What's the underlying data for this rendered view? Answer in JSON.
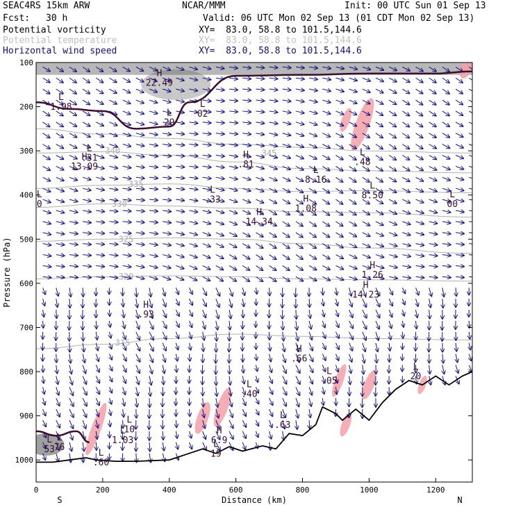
{
  "header": {
    "model": "SEAC4RS 15km ARW",
    "org": "NCAR/MMM",
    "init": "Init: 00 UTC Sun 01 Sep 13",
    "fcst_label": "Fcst:",
    "fcst_value": "30 h",
    "valid": "Valid: 06 UTC Mon 02 Sep 13 (01 CDT Mon 02 Sep 13)"
  },
  "fields": [
    {
      "name": "Potential vorticity",
      "xy": "XY=  83.0, 58.8 to 101.5,144.6",
      "color": "#000000"
    },
    {
      "name": "Potential temperature",
      "xy": "XY=  83.0, 58.8 to 101.5,144.6",
      "color": "#c0c0c0"
    },
    {
      "name": "Horizontal wind speed",
      "xy": "XY=  83.0, 58.8 to 101.5,144.6",
      "color": "#101070"
    }
  ],
  "chart_data": {
    "type": "cross-section",
    "xlabel": "Distance (km)",
    "ylabel": "Pressure (hPa)",
    "xlim": [
      0,
      1310
    ],
    "ylim": [
      1050,
      100
    ],
    "xticks": [
      0,
      200,
      400,
      600,
      800,
      1000,
      1200
    ],
    "yticks": [
      100,
      200,
      300,
      400,
      500,
      600,
      700,
      800,
      900,
      1000
    ],
    "x_end_labels": {
      "left": "S",
      "right": "N"
    },
    "theta_contours": [
      {
        "label": "345",
        "x": 700,
        "p": 305,
        "points": [
          [
            0,
            250
          ],
          [
            200,
            262
          ],
          [
            400,
            272
          ],
          [
            600,
            285
          ],
          [
            800,
            292
          ],
          [
            1000,
            300
          ],
          [
            1310,
            305
          ]
        ]
      },
      {
        "label": "340",
        "x": 230,
        "p": 300,
        "points": [
          [
            0,
            305
          ],
          [
            200,
            302
          ],
          [
            400,
            310
          ],
          [
            600,
            325
          ],
          [
            800,
            340
          ],
          [
            1000,
            345
          ],
          [
            1310,
            350
          ]
        ]
      },
      {
        "label": "335",
        "x": 300,
        "p": 375,
        "points": [
          [
            0,
            385
          ],
          [
            200,
            378
          ],
          [
            400,
            375
          ],
          [
            600,
            385
          ],
          [
            800,
            392
          ],
          [
            1000,
            390
          ],
          [
            1310,
            395
          ]
        ]
      },
      {
        "label": "330",
        "x": 250,
        "p": 420,
        "points": [
          [
            0,
            428
          ],
          [
            200,
            420
          ],
          [
            400,
            425
          ],
          [
            600,
            430
          ],
          [
            800,
            438
          ],
          [
            1000,
            440
          ],
          [
            1310,
            450
          ]
        ]
      },
      {
        "label": "325",
        "x": 270,
        "p": 500,
        "points": [
          [
            0,
            505
          ],
          [
            200,
            500
          ],
          [
            400,
            497
          ],
          [
            600,
            500
          ],
          [
            800,
            510
          ],
          [
            1000,
            520
          ],
          [
            1310,
            532
          ]
        ]
      },
      {
        "label": "320",
        "x": 270,
        "p": 585,
        "points": [
          [
            0,
            590
          ],
          [
            200,
            585
          ],
          [
            400,
            583
          ],
          [
            600,
            585
          ],
          [
            800,
            590
          ],
          [
            1000,
            592
          ],
          [
            1310,
            595
          ]
        ]
      },
      {
        "label": "315",
        "x": 260,
        "p": 735,
        "points": [
          [
            0,
            748
          ],
          [
            200,
            738
          ],
          [
            400,
            725
          ],
          [
            600,
            715
          ],
          [
            800,
            720
          ],
          [
            1000,
            725
          ],
          [
            1310,
            728
          ]
        ]
      }
    ],
    "pv_tropopause": [
      [
        0,
        190
      ],
      [
        100,
        205
      ],
      [
        200,
        210
      ],
      [
        300,
        250
      ],
      [
        400,
        245
      ],
      [
        460,
        190
      ],
      [
        600,
        130
      ],
      [
        800,
        128
      ],
      [
        1000,
        125
      ],
      [
        1200,
        125
      ],
      [
        1310,
        120
      ]
    ],
    "extrema": [
      {
        "type": "L",
        "value": "1.98",
        "x": 75,
        "p": 190
      },
      {
        "type": "H",
        "value": "22.49",
        "x": 370,
        "p": 135
      },
      {
        "type": "L",
        "value": "29",
        "x": 400,
        "p": 225
      },
      {
        "type": "L",
        "value": "02",
        "x": 500,
        "p": 205
      },
      {
        "type": "H",
        "value": "13.09",
        "x": 145,
        "p": 325
      },
      {
        "type": "L",
        "value": ".31",
        "x": 160,
        "p": 305
      },
      {
        "type": "H",
        "value": ".81",
        "x": 630,
        "p": 320
      },
      {
        "type": "L",
        "value": ".48",
        "x": 980,
        "p": 315
      },
      {
        "type": "L",
        "value": "8.16",
        "x": 840,
        "p": 355
      },
      {
        "type": "L",
        "value": "8.50",
        "x": 1010,
        "p": 390
      },
      {
        "type": "L",
        "value": "00",
        "x": 1250,
        "p": 410
      },
      {
        "type": "L",
        "value": "0",
        "x": 10,
        "p": 410
      },
      {
        "type": "L",
        "value": ".33",
        "x": 530,
        "p": 400
      },
      {
        "type": "H",
        "value": "1.08",
        "x": 810,
        "p": 420
      },
      {
        "type": "H",
        "value": "14.34",
        "x": 670,
        "p": 450
      },
      {
        "type": "H",
        "value": "1.26",
        "x": 1010,
        "p": 570
      },
      {
        "type": "H",
        "value": "14.23",
        "x": 990,
        "p": 615
      },
      {
        "type": "H",
        "value": ".93",
        "x": 330,
        "p": 660
      },
      {
        "type": "H",
        "value": ".66",
        "x": 790,
        "p": 760
      },
      {
        "type": "L",
        "value": ".05",
        "x": 880,
        "p": 810
      },
      {
        "type": "L",
        "value": ".40",
        "x": 640,
        "p": 840
      },
      {
        "type": "L",
        "value": "20",
        "x": 1140,
        "p": 800
      },
      {
        "type": "L",
        "value": ".63",
        "x": 740,
        "p": 910
      },
      {
        "type": "L",
        "value": "1.03",
        "x": 260,
        "p": 945
      },
      {
        "type": "L",
        "value": "10",
        "x": 280,
        "p": 920
      },
      {
        "type": "H",
        "value": "6.9",
        "x": 550,
        "p": 945
      },
      {
        "type": "L",
        "value": "19",
        "x": 540,
        "p": 975
      },
      {
        "type": "L",
        "value": ".60",
        "x": 195,
        "p": 995
      },
      {
        "type": "L",
        "value": "76",
        "x": 70,
        "p": 960
      },
      {
        "type": "L",
        "value": "53",
        "x": 40,
        "p": 965
      }
    ],
    "terrain": [
      [
        0,
        1005
      ],
      [
        50,
        1005
      ],
      [
        100,
        1000
      ],
      [
        150,
        995
      ],
      [
        180,
        1000
      ],
      [
        240,
        1003
      ],
      [
        300,
        1003
      ],
      [
        400,
        1000
      ],
      [
        460,
        985
      ],
      [
        500,
        975
      ],
      [
        540,
        985
      ],
      [
        580,
        970
      ],
      [
        620,
        980
      ],
      [
        680,
        968
      ],
      [
        720,
        975
      ],
      [
        760,
        940
      ],
      [
        800,
        945
      ],
      [
        840,
        920
      ],
      [
        860,
        880
      ],
      [
        900,
        895
      ],
      [
        920,
        910
      ],
      [
        960,
        885
      ],
      [
        1000,
        910
      ],
      [
        1040,
        870
      ],
      [
        1080,
        840
      ],
      [
        1120,
        820
      ],
      [
        1160,
        830
      ],
      [
        1200,
        810
      ],
      [
        1240,
        830
      ],
      [
        1280,
        810
      ],
      [
        1310,
        800
      ]
    ],
    "terrain_end_label": {
      "x": 1300,
      "p": 790
    }
  },
  "colors": {
    "pv_line": "#3b0d2e",
    "theta_line": "#b0b0b0",
    "wind_vector": "#101080",
    "pink_shade": "#f4a0a8",
    "grey_shade": "#606060",
    "axis": "#000000"
  }
}
